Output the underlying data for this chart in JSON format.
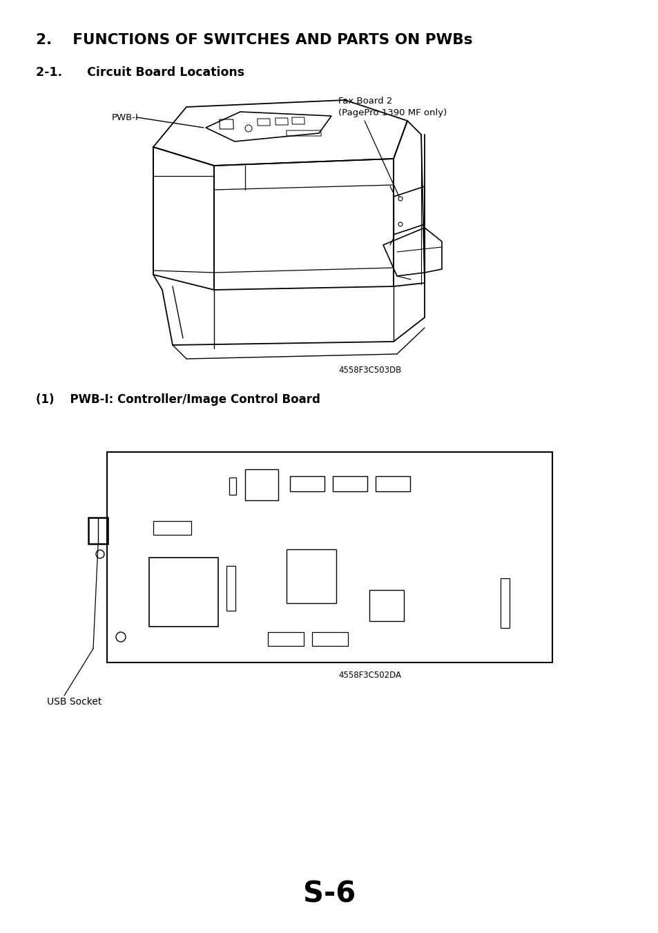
{
  "title_main": "2.    FUNCTIONS OF SWITCHES AND PARTS ON PWBs",
  "title_sub": "2-1.      Circuit Board Locations",
  "section_label": "(1)    PWB-I: Controller/Image Control Board",
  "page_number": "S-6",
  "bg_color": "#ffffff",
  "fig_code1": "4558F3C503DB",
  "fig_code2": "4558F3C502DA",
  "usb_label": "USB Socket",
  "pwb_label": "PWB-I",
  "fax_label1": "Fax Board 2",
  "fax_label2": "(PagePro 1390 MF only)"
}
